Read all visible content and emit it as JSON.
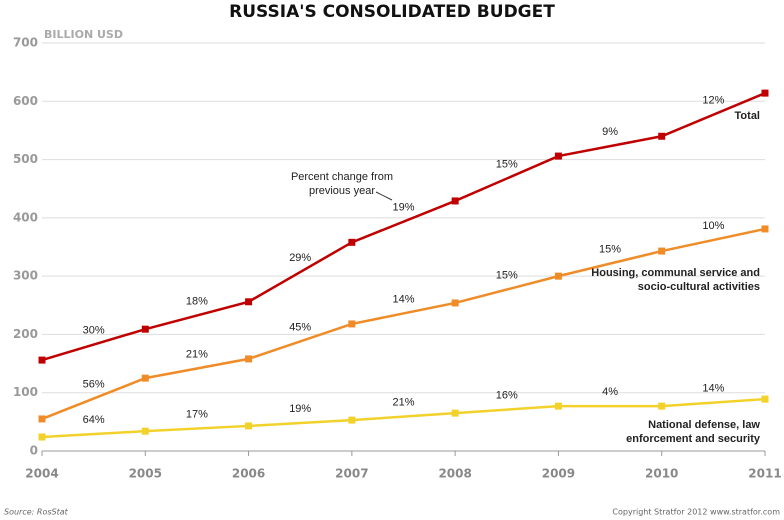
{
  "chart_data": {
    "type": "line",
    "title": "RUSSIA'S CONSOLIDATED BUDGET",
    "y_label": "BILLION USD",
    "annotation": "Percent change from previous year",
    "source": "Source: RosStat",
    "credit": "Copyright Stratfor 2012   www.stratfor.com",
    "x": [
      2004,
      2005,
      2006,
      2007,
      2008,
      2009,
      2010,
      2011
    ],
    "xlim": [
      2004,
      2011
    ],
    "xticks": [
      2004,
      2005,
      2006,
      2007,
      2008,
      2009,
      2010,
      2011
    ],
    "ylim": [
      0,
      700
    ],
    "yticks": [
      0,
      100,
      200,
      300,
      400,
      500,
      600,
      700
    ],
    "grid": true,
    "series": [
      {
        "name": "Total",
        "color": "#c00000",
        "values": [
          156,
          209,
          256,
          358,
          429,
          506,
          540,
          614
        ],
        "change_labels": [
          "30%",
          "18%",
          "29%",
          "19%",
          "15%",
          "9%",
          "12%"
        ]
      },
      {
        "name": "Housing, communal service and socio-cultural activities",
        "color": "#f08c28",
        "values": [
          55,
          125,
          158,
          218,
          254,
          300,
          343,
          381
        ],
        "change_labels": [
          "56%",
          "21%",
          "45%",
          "14%",
          "15%",
          "15%",
          "10%"
        ]
      },
      {
        "name": "National defense, law enforcement and security",
        "color": "#f2d22a",
        "values": [
          24,
          34,
          43,
          53,
          65,
          77,
          77,
          89
        ],
        "change_labels": [
          "64%",
          "17%",
          "19%",
          "21%",
          "16%",
          "4%",
          "14%"
        ]
      }
    ]
  }
}
